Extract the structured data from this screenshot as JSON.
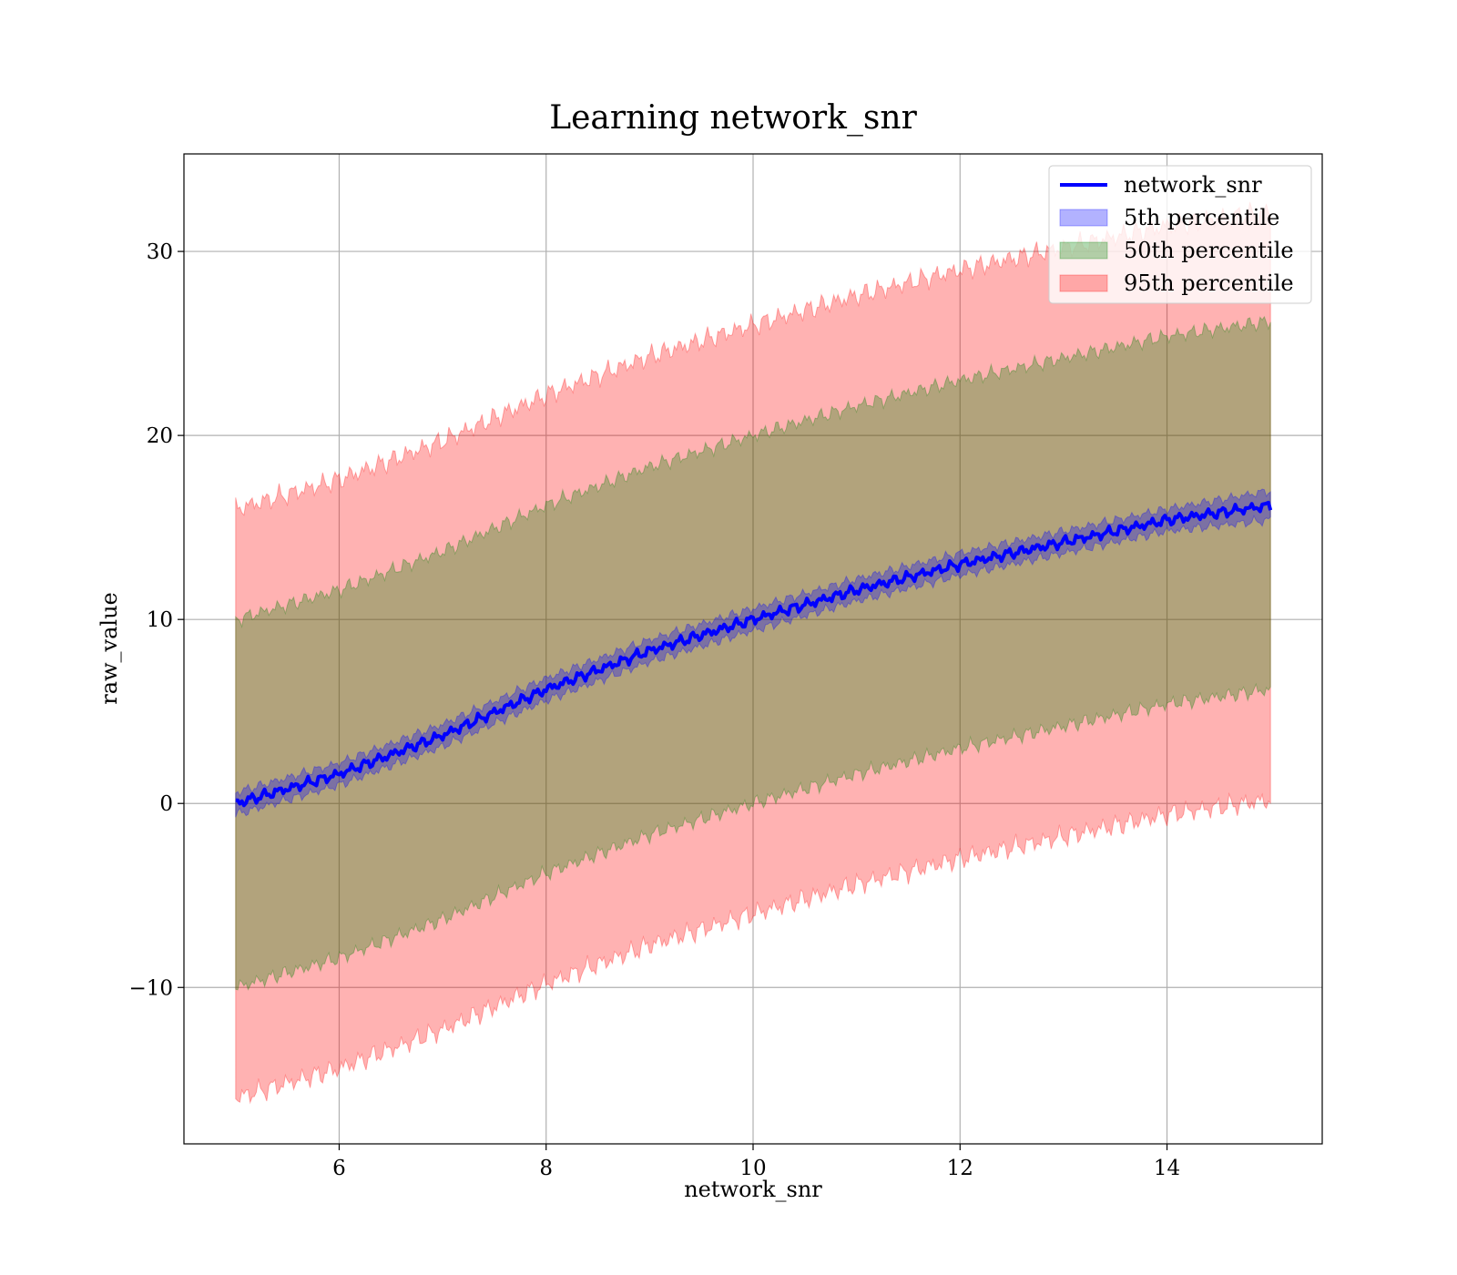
{
  "chart_data": {
    "type": "area",
    "title": "Learning network_snr",
    "xlabel": "network_snr",
    "ylabel": "raw_value",
    "xlim": [
      4.5,
      15.5
    ],
    "ylim": [
      -18.5,
      35.3
    ],
    "xticks": [
      6,
      8,
      10,
      12,
      14
    ],
    "yticks": [
      -10,
      0,
      10,
      20,
      30
    ],
    "xtick_labels": [
      "6",
      "8",
      "10",
      "12",
      "14"
    ],
    "ytick_labels": [
      "−10",
      "0",
      "10",
      "20",
      "30"
    ],
    "grid": true,
    "legend_position": "top-right",
    "x_range": [
      5,
      15
    ],
    "series": [
      {
        "name": "network_snr",
        "kind": "line",
        "color": "#0000ff",
        "x": [
          5,
          6,
          7,
          8,
          9,
          10,
          11,
          12,
          13,
          14,
          15
        ],
        "y": [
          0,
          1.6,
          3.7,
          6.2,
          8.3,
          10,
          11.6,
          13,
          14.2,
          15.4,
          16.2
        ]
      },
      {
        "name": "5th percentile",
        "kind": "band",
        "color": "#0000ff",
        "x": [
          5,
          6,
          7,
          8,
          9,
          10,
          11,
          12,
          13,
          14,
          15
        ],
        "lower": [
          -0.6,
          1.0,
          3.1,
          5.6,
          7.7,
          9.4,
          11.0,
          12.4,
          13.6,
          14.8,
          15.4
        ],
        "upper": [
          0.6,
          2.2,
          4.3,
          6.8,
          8.9,
          10.6,
          12.2,
          13.6,
          14.8,
          16.0,
          17.0
        ]
      },
      {
        "name": "50th percentile",
        "kind": "band",
        "color": "#008000",
        "x": [
          5,
          6,
          7,
          8,
          9,
          10,
          11,
          12,
          13,
          14,
          15
        ],
        "lower": [
          -10,
          -8.4,
          -6.3,
          -3.8,
          -1.7,
          0,
          1.6,
          3.0,
          4.2,
          5.4,
          6.2
        ],
        "upper": [
          10,
          11.6,
          13.7,
          16.2,
          18.3,
          20,
          21.6,
          23.0,
          24.2,
          25.4,
          26.2
        ]
      },
      {
        "name": "95th percentile",
        "kind": "band",
        "color": "#ff0000",
        "x": [
          5,
          6,
          7,
          8,
          9,
          10,
          11,
          12,
          13,
          14,
          15
        ],
        "lower": [
          -16,
          -14.4,
          -12.3,
          -9.8,
          -7.7,
          -6,
          -4.4,
          -3.0,
          -1.8,
          -0.6,
          0.2
        ],
        "upper": [
          16,
          17.6,
          19.7,
          22.2,
          24.3,
          26,
          27.6,
          29.0,
          30.2,
          31.4,
          32.2
        ]
      }
    ]
  }
}
